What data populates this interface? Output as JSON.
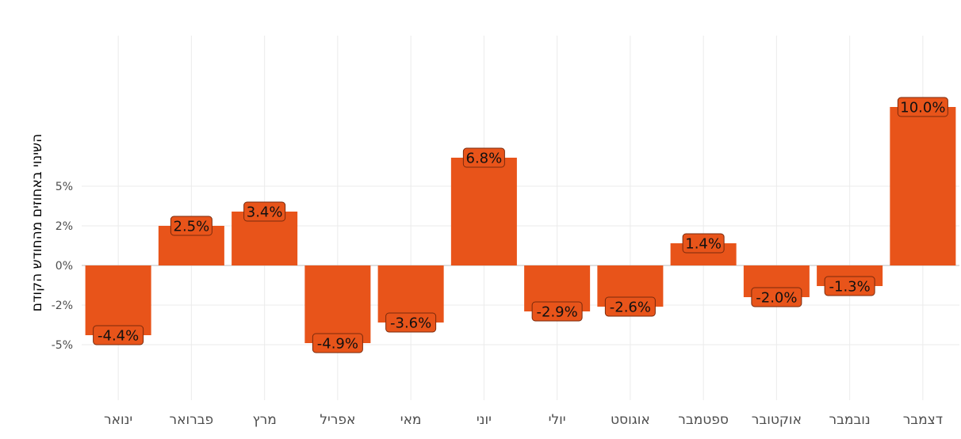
{
  "chart_data": {
    "type": "bar",
    "ylabel": "השינוי באחוזים מהחודש הקודם",
    "categories": [
      "ינואר",
      "פברואר",
      "מרץ",
      "אפריל",
      "מאי",
      "יוני",
      "יולי",
      "אוגוסט",
      "ספטמבר",
      "אוקטובר",
      "נובמבר",
      "דצמבר"
    ],
    "values": [
      -4.4,
      2.5,
      3.4,
      -4.9,
      -3.6,
      6.8,
      -2.9,
      -2.6,
      1.4,
      -2.0,
      -1.3,
      10.0
    ],
    "data_labels": [
      "-4.4%",
      "2.5%",
      "3.4%",
      "-4.9%",
      "-3.6%",
      "6.8%",
      "-2.9%",
      "-2.6%",
      "1.4%",
      "-2.0%",
      "-1.3%",
      "10.0%"
    ],
    "y_ticks": [
      -5,
      -2.5,
      0,
      2.5,
      5
    ],
    "y_tick_labels": [
      "-5%",
      "-2%",
      "0%",
      "2%",
      "5%"
    ],
    "ylim": [
      -8.5,
      14.5
    ],
    "grid": true,
    "bar_color": "#e8541a",
    "label_box_color": "#e8541a"
  }
}
